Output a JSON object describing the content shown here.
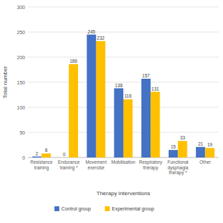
{
  "chart_data": {
    "type": "bar",
    "x_label": "Therapy interventions",
    "y_label": "Total number",
    "categories": [
      "Resistance training",
      "Endurance training *",
      "Movement exercise",
      "Mobilisation",
      "Respiratory therapy",
      "Functional dysphagia therapy *",
      "Other"
    ],
    "series": [
      {
        "name": "Control group",
        "color": "#4472c4",
        "values": [
          2,
          0,
          245,
          138,
          157,
          15,
          21
        ]
      },
      {
        "name": "Experimental group",
        "color": "#ffc000",
        "values": [
          8,
          186,
          232,
          116,
          131,
          33,
          19
        ]
      }
    ],
    "ylim": [
      0,
      300
    ],
    "yticks": [
      0,
      50,
      100,
      150,
      200,
      250,
      300
    ],
    "grid": true,
    "legend": "bottom",
    "data_labels": true
  }
}
